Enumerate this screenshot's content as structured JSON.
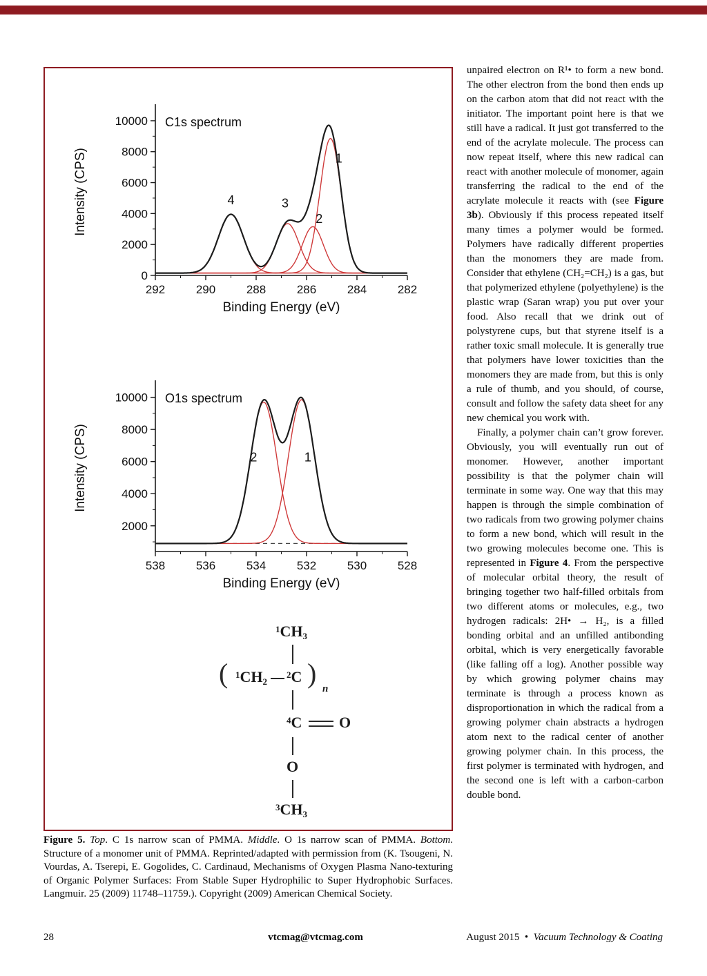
{
  "page": {
    "top_bar_color": "#8e1b21",
    "footer": {
      "page_number": "28",
      "email": "vtcmag@vtcmag.com",
      "date": "August 2015",
      "separator": "•",
      "magazine": "Vacuum Technology & Coating"
    }
  },
  "figure": {
    "border_color": "#8e1b21",
    "caption_segments": [
      {
        "t": "Figure 5.",
        "b": true
      },
      {
        "t": " "
      },
      {
        "t": "Top",
        "i": true
      },
      {
        "t": ". C 1s narrow scan of PMMA. "
      },
      {
        "t": "Middle",
        "i": true
      },
      {
        "t": ". O 1s narrow scan of PMMA. "
      },
      {
        "t": "Bottom",
        "i": true
      },
      {
        "t": ". Structure of a monomer unit of PMMA. Reprinted/adapted with permission from (K. Tsougeni, N. Vourdas, A. Tserepi, E. Gogolides, C. Cardinaud, Mechanisms of Oxygen Plasma Nano-texturing of Organic Polymer Surfaces: From Stable Super Hydrophilic to Super Hydrophobic Surfaces. Langmuir. 25 (2009) 11748–11759.). Copyright (2009) American Chemical Society."
      }
    ]
  },
  "structure": {
    "methyl_top": {
      "sup": "1",
      "main": "CH",
      "sub": "3"
    },
    "methylene": {
      "sup": "1",
      "main": "CH",
      "sub": "2"
    },
    "quaternary_c": {
      "sup": "2",
      "main": "C"
    },
    "carbonyl_c": {
      "sup": "4",
      "main": "C"
    },
    "carbonyl_o": "O",
    "ester_o": "O",
    "methyl_bottom": {
      "sup": "3",
      "main": "CH",
      "sub": "3"
    },
    "paren_open": "(",
    "paren_close": ")",
    "repeat_sub": "n"
  },
  "chart_data": [
    {
      "id": "c1s",
      "type": "line",
      "title": "C1s spectrum",
      "xlabel": "Binding Energy (eV)",
      "ylabel": "Intensity (CPS)",
      "x_range": [
        292,
        282
      ],
      "y_range": [
        0,
        10800
      ],
      "x_ticks": [
        292,
        290,
        288,
        286,
        284,
        282
      ],
      "y_ticks": [
        0,
        2000,
        4000,
        6000,
        8000,
        10000
      ],
      "x_minor_step": 1,
      "y_minor_step": 1000,
      "baseline": 150,
      "baseline_dashed": false,
      "envelope_color": "#1d1d1d",
      "component_color": "#cf3a3a",
      "components": [
        {
          "label": "4",
          "center": 289.0,
          "amplitude": 3800,
          "sigma": 0.5
        },
        {
          "label": "3",
          "center": 286.75,
          "amplitude": 3200,
          "sigma": 0.45
        },
        {
          "label": "2",
          "center": 285.75,
          "amplitude": 3000,
          "sigma": 0.42
        },
        {
          "label": "1",
          "center": 285.05,
          "amplitude": 8700,
          "sigma": 0.42
        }
      ],
      "peak_labels": [
        {
          "text": "4",
          "x": 289.0,
          "y": 4600
        },
        {
          "text": "3",
          "x": 286.85,
          "y": 4400
        },
        {
          "text": "2",
          "x": 285.5,
          "y": 3400
        },
        {
          "text": "1",
          "x": 284.72,
          "y": 7300
        }
      ]
    },
    {
      "id": "o1s",
      "type": "line",
      "title": "O1s spectrum",
      "xlabel": "Binding Energy (eV)",
      "ylabel": "Intensity (CPS)",
      "x_range": [
        538,
        528
      ],
      "y_range": [
        400,
        10800
      ],
      "x_ticks": [
        538,
        536,
        534,
        532,
        530,
        528
      ],
      "y_ticks": [
        2000,
        4000,
        6000,
        8000,
        10000
      ],
      "x_minor_step": 1,
      "y_minor_step": 1000,
      "baseline": 900,
      "baseline_dashed": true,
      "envelope_color": "#1d1d1d",
      "component_color": "#cf3a3a",
      "components": [
        {
          "label": "2",
          "center": 533.7,
          "amplitude": 8800,
          "sigma": 0.52
        },
        {
          "label": "1",
          "center": 532.2,
          "amplitude": 8950,
          "sigma": 0.52
        }
      ],
      "peak_labels": [
        {
          "text": "2",
          "x": 534.1,
          "y": 6000
        },
        {
          "text": "1",
          "x": 531.95,
          "y": 6000
        }
      ]
    }
  ],
  "article": {
    "paragraphs": [
      [
        {
          "t": "unpaired electron on R¹• to form a new bond. The other electron from the bond then ends up on the carbon atom that did not react with the initiator. The important point here is that we still have a radical. It just got transferred to the end of the acrylate molecule. The process can now repeat itself, where this new radical can react with another molecule of monomer, again transferring the radical to the end of the acrylate molecule it reacts with (see "
        },
        {
          "t": "Figure 3b",
          "b": true
        },
        {
          "t": "). Obviously if this process repeated itself many times a polymer would be formed. Polymers have radically different properties than the monomers they are made from. Consider that ethylene (CH₂=CH₂) is a gas, but that polymerized ethylene (polyethylene) is the plastic wrap (Saran wrap) you put over your food. Also recall that we drink out of polystyrene cups, but that styrene itself is a rather toxic small molecule. It is generally true that polymers have lower toxicities than the monomers they are made from, but this is only a rule of thumb, and you should, of course, consult and follow the safety data sheet for any new chemical you work with."
        }
      ],
      [
        {
          "t": "Finally, a polymer chain can’t grow forever. Obviously, you will eventually run out of monomer. However, another important possibility is that the polymer chain will terminate in some way. One way that this may happen is through the simple combination of two radicals from two growing polymer chains to form a new bond, which will result in the two growing molecules become one. This is represented in "
        },
        {
          "t": "Figure 4",
          "b": true
        },
        {
          "t": ". From the perspective of molecular orbital theory, the result of bringing together two half-filled orbitals from two different atoms or molecules, e.g., two hydrogen radicals: 2H• → H₂, is a filled bonding orbital and an unfilled antibonding orbital, which is very energetically favorable (like falling off a log). Another possible way by which growing polymer chains may terminate is through a process known as disproportionation in which the radical from a growing polymer chain abstracts a hydrogen atom next to the radical center of another growing polymer chain. In this process, the first polymer is terminated with hydrogen, and the second one is left with a carbon-carbon double bond."
        }
      ]
    ]
  }
}
